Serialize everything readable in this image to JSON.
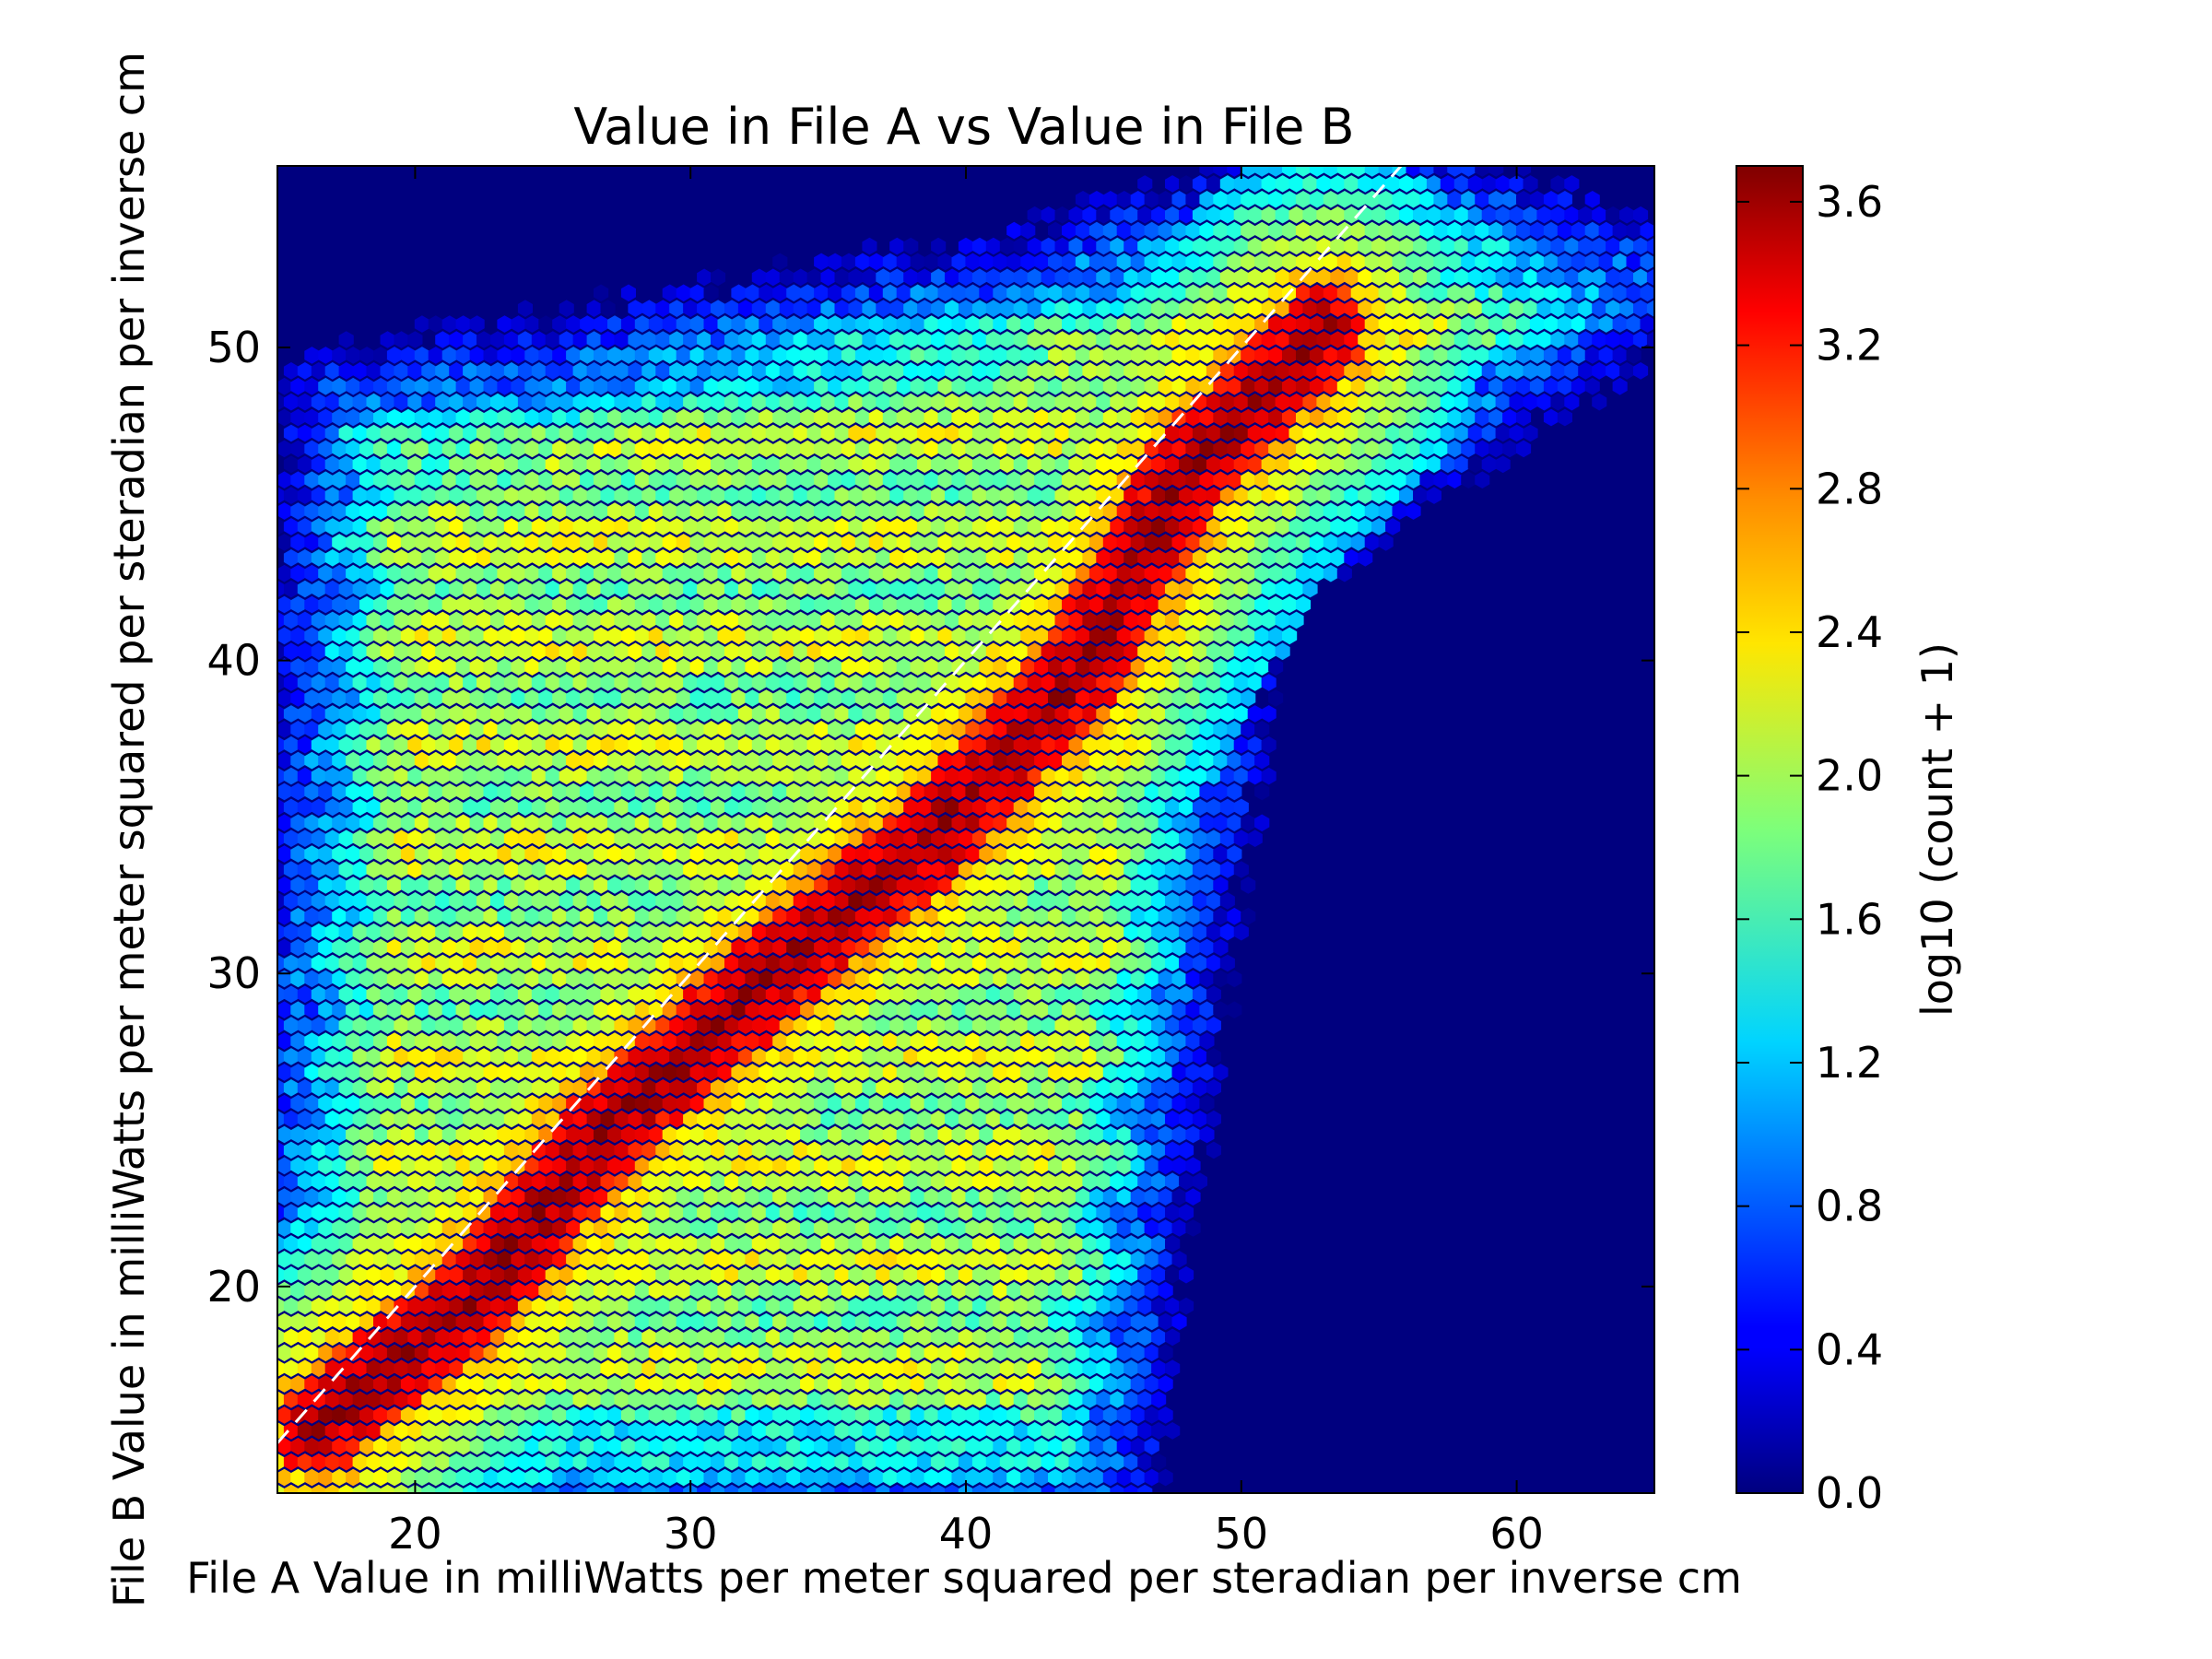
{
  "chart_data": {
    "type": "heatmap",
    "subtype": "hexbin",
    "title": "Value in File A vs Value in File B",
    "xlabel": "File A Value in milliWatts per meter squared per steradian per inverse cm",
    "ylabel": "File B Value in milliWatts per meter squared per steradian per inverse cm",
    "xlim": [
      15,
      65
    ],
    "ylim": [
      13.4,
      55.8
    ],
    "xticks": [
      20,
      30,
      40,
      50,
      60
    ],
    "yticks": [
      20,
      30,
      40,
      50
    ],
    "reference_line": {
      "slope": 1,
      "intercept": 0,
      "style": "dashed",
      "color": "#ffffff"
    },
    "background_color": "#00007f",
    "colormap": "jet",
    "colorbar": {
      "label": "log10 (count + 1)",
      "min": 0.0,
      "max": 3.7,
      "ticks": [
        0.0,
        0.4,
        0.8,
        1.2,
        1.6,
        2.0,
        2.4,
        2.8,
        3.2,
        3.6
      ]
    },
    "density_description": {
      "main_ridge": [
        [
          16.5,
          15.5
        ],
        [
          22,
          19.5
        ],
        [
          27,
          25
        ],
        [
          33,
          30
        ],
        [
          39,
          34.5
        ],
        [
          44,
          39.5
        ],
        [
          48,
          46
        ],
        [
          53,
          50.5
        ]
      ],
      "ridge_peak": 3.6,
      "broad_region": [
        [
          15,
          13.5
        ],
        [
          17,
          48
        ],
        [
          42,
          52
        ],
        [
          55,
          55.5
        ],
        [
          65,
          52
        ],
        [
          50,
          43
        ],
        [
          45,
          13.5
        ]
      ],
      "broad_level": 2.0
    }
  }
}
